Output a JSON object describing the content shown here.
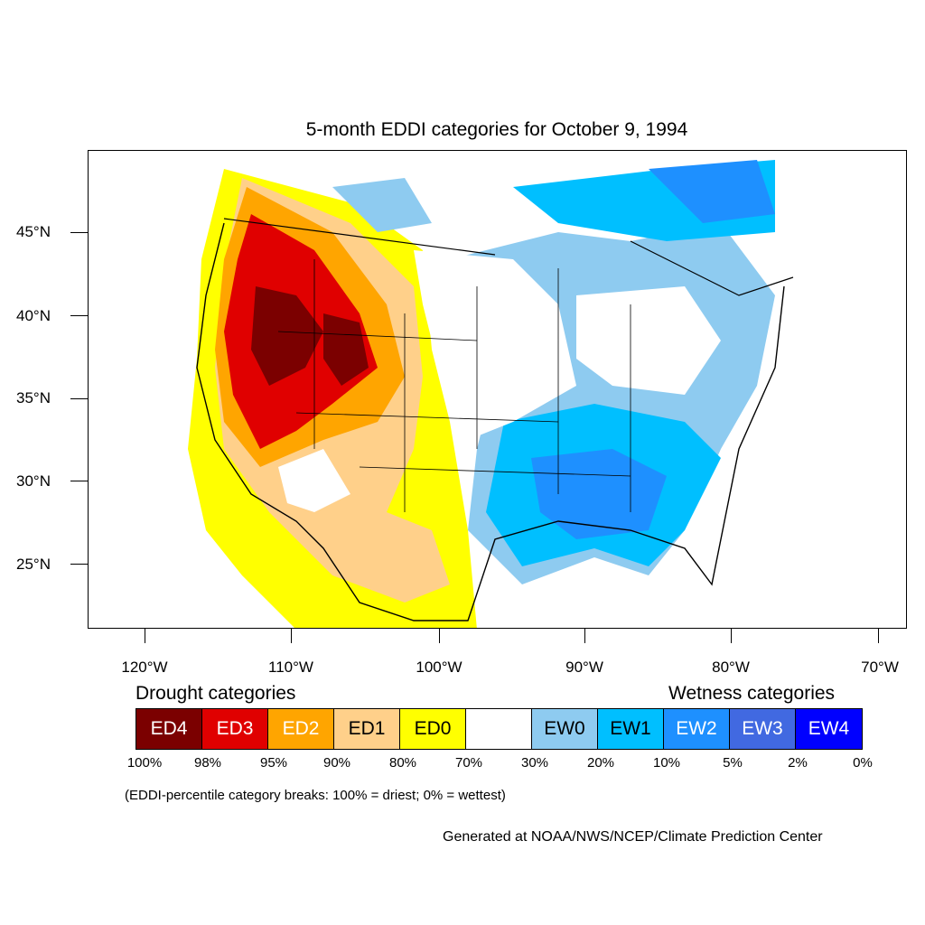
{
  "title": "5-month EDDI categories for October 9, 1994",
  "axes": {
    "latitude_labels": [
      "45°N",
      "40°N",
      "35°N",
      "30°N",
      "25°N"
    ],
    "longitude_labels": [
      "120°W",
      "110°W",
      "100°W",
      "90°W",
      "80°W",
      "70°W"
    ]
  },
  "legend": {
    "drought_heading": "Drought categories",
    "wetness_heading": "Wetness categories",
    "categories": [
      {
        "label": "ED4",
        "color": "#7b0000",
        "text_color": "#ffffff"
      },
      {
        "label": "ED3",
        "color": "#e00000",
        "text_color": "#ffffff"
      },
      {
        "label": "ED2",
        "color": "#ffa500",
        "text_color": "#ffffff"
      },
      {
        "label": "ED1",
        "color": "#ffd08a",
        "text_color": "#000000"
      },
      {
        "label": "ED0",
        "color": "#ffff00",
        "text_color": "#000000"
      },
      {
        "label": "",
        "color": "#ffffff",
        "text_color": "#000000"
      },
      {
        "label": "EW0",
        "color": "#8ecbf0",
        "text_color": "#000000"
      },
      {
        "label": "EW1",
        "color": "#00bfff",
        "text_color": "#000000"
      },
      {
        "label": "EW2",
        "color": "#1e90ff",
        "text_color": "#ffffff"
      },
      {
        "label": "EW3",
        "color": "#4169e1",
        "text_color": "#ffffff"
      },
      {
        "label": "EW4",
        "color": "#0000ff",
        "text_color": "#ffffff"
      }
    ],
    "percentile_breaks": [
      "100%",
      "98%",
      "95%",
      "90%",
      "80%",
      "70%",
      "30%",
      "20%",
      "10%",
      "5%",
      "2%",
      "0%"
    ]
  },
  "note": "(EDDI-percentile category breaks: 100% = driest; 0% = wettest)",
  "credit": "Generated at NOAA/NWS/NCEP/Climate Prediction Center"
}
